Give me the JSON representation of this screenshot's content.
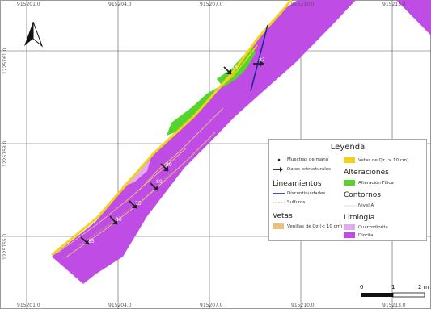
{
  "map": {
    "coords_top": [
      "915201.0",
      "915204.0",
      "915207.0",
      "915210.0",
      "915213.0"
    ],
    "coords_bottom": [
      "915201.0",
      "915204.0",
      "915207.0",
      "915210.0",
      "915213.0"
    ],
    "coords_left": [
      "1225761.0",
      "1225758.0",
      "1225755.0"
    ],
    "dip_labels": [
      "85",
      "80",
      "75",
      "80",
      "80",
      "80",
      "82",
      "80"
    ],
    "colors": {
      "diorita": "#c04ce6",
      "cuarzodiorita": "#e3a9f2",
      "alteracion_filica": "#54d42e",
      "vetas_qz": "#f2d21b",
      "venillas_qz": "#e6c27a",
      "sulfuros": "#c8b46e",
      "discontinuidades": "#1b2a9e",
      "nivel_a": "#dddddd"
    }
  },
  "legend": {
    "title": "Leyenda",
    "muestras": "Muestras de mano",
    "datos_estructurales": "Datos estructurales",
    "lineamientos": "Lineamientos",
    "discontinuidades": "Discontinuidades",
    "sulfuros": "Sulfuros",
    "vetas": "Vetas",
    "venillas": "Venillas de Qz (< 10 cm)",
    "vetas_qz": "Vetas de Qz (> 10 cm)",
    "alteraciones": "Alteraciones",
    "alteracion_filica": "Alteración Fílica",
    "contornos": "Contornos",
    "nivel_a": "Nivel A",
    "litologia": "Litología",
    "cuarzodiorita": "Cuarzodiorita",
    "diorita": "Diorita"
  },
  "scalebar": {
    "labels": [
      "0",
      "1",
      "2 m"
    ]
  }
}
